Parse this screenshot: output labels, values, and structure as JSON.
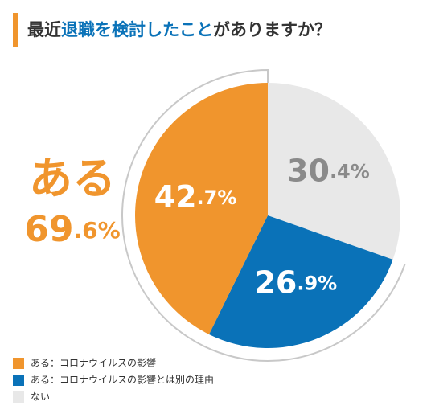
{
  "chart_data": {
    "type": "pie",
    "title_parts": [
      "最近",
      "退職を検討したこと",
      "がありますか？"
    ],
    "categories": [
      "ある：コロナウイルスの影響",
      "ある：コロナウイルスの影響とは別の理由",
      "ない"
    ],
    "values": [
      42.7,
      26.9,
      30.4
    ],
    "value_labels": [
      "42.7%",
      "26.9%",
      "30.4%"
    ],
    "colors": [
      "#f0952d",
      "#0a72b8",
      "#e8e8e8"
    ],
    "annotation": {
      "label": "ある",
      "value": 69.6,
      "value_label": "69.6%"
    }
  }
}
